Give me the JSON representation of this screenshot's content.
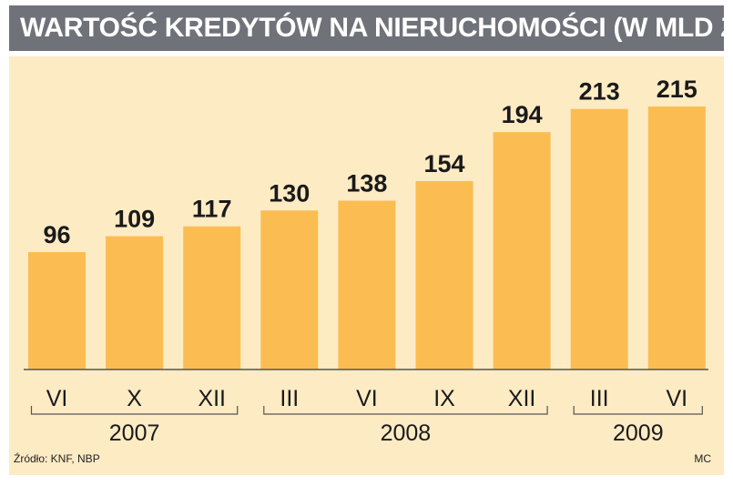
{
  "title": "WARTOŚĆ KREDYTÓW NA NIERUCHOMOŚCI (W MLD ZŁ)",
  "source": "Źródło: KNF, NBP",
  "credit": "MC",
  "colors": {
    "bar": "#fbbd52",
    "background": "#fdebc4",
    "title_bar": "#6f7278",
    "axis": "#555555",
    "text": "#1a1a1a"
  },
  "chart_data": {
    "type": "bar",
    "title": "WARTOŚĆ KREDYTÓW NA NIERUCHOMOŚCI (W MLD ZŁ)",
    "categories": [
      "VI",
      "X",
      "XII",
      "III",
      "VI",
      "IX",
      "XII",
      "III",
      "VI"
    ],
    "values": [
      96,
      109,
      117,
      130,
      138,
      154,
      194,
      213,
      215
    ],
    "data_labels": [
      "96",
      "109",
      "117",
      "130",
      "138",
      "154",
      "194",
      "213",
      "215"
    ],
    "groups": [
      {
        "label": "2007",
        "start": 0,
        "end": 2
      },
      {
        "label": "2008",
        "start": 3,
        "end": 6
      },
      {
        "label": "2009",
        "start": 7,
        "end": 8
      }
    ],
    "ylim": [
      0,
      215
    ],
    "grid": false,
    "legend": "none"
  }
}
